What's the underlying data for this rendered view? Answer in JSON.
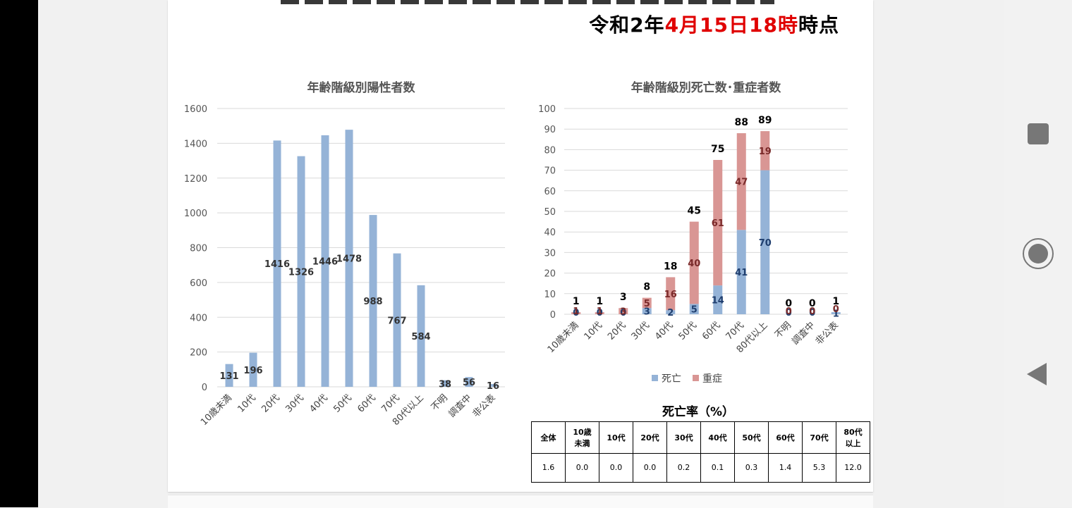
{
  "header": {
    "date_prefix": "令和2年",
    "date_red": "4月15日18時",
    "date_suffix": "時点"
  },
  "chart_data": [
    {
      "type": "bar",
      "title": "年齢階級別陽性者数",
      "categories": [
        "10歳未満",
        "10代",
        "20代",
        "30代",
        "40代",
        "50代",
        "60代",
        "70代",
        "80代以上",
        "不明",
        "調査中",
        "非公表"
      ],
      "values": [
        131,
        196,
        1416,
        1326,
        1446,
        1478,
        988,
        767,
        584,
        38,
        56,
        16
      ],
      "ylim": [
        0,
        1600
      ],
      "yticks": [
        0,
        200,
        400,
        600,
        800,
        1000,
        1200,
        1400,
        1600
      ],
      "color": "#95b3d7"
    },
    {
      "type": "bar",
      "stacked": true,
      "title": "年齢階級別死亡数･重症者数",
      "categories": [
        "10歳未満",
        "10代",
        "20代",
        "30代",
        "40代",
        "50代",
        "60代",
        "70代",
        "80代以上",
        "不明",
        "調査中",
        "非公表"
      ],
      "series": [
        {
          "name": "死亡",
          "color": "#95b3d7",
          "values": [
            0,
            0,
            0,
            3,
            2,
            5,
            14,
            41,
            70,
            0,
            0,
            1
          ]
        },
        {
          "name": "重症",
          "color": "#d99694",
          "values": [
            1,
            1,
            3,
            5,
            16,
            40,
            61,
            47,
            19,
            0,
            0,
            0
          ]
        }
      ],
      "totals": [
        1,
        1,
        3,
        8,
        18,
        45,
        75,
        88,
        89,
        0,
        0,
        1
      ],
      "ylim": [
        0,
        100
      ],
      "yticks": [
        0,
        10,
        20,
        30,
        40,
        50,
        60,
        70,
        80,
        90,
        100
      ],
      "legend": "bottom"
    }
  ],
  "mortality": {
    "title": "死亡率（%）",
    "headers": [
      "全体",
      "10歳\n未満",
      "10代",
      "20代",
      "30代",
      "40代",
      "50代",
      "60代",
      "70代",
      "80代\n以上"
    ],
    "values": [
      "1.6",
      "0.0",
      "0.0",
      "0.0",
      "0.2",
      "0.1",
      "0.3",
      "1.4",
      "5.3",
      "12.0"
    ]
  },
  "nav": {
    "icons": [
      "recents-icon",
      "home-icon",
      "back-icon"
    ]
  }
}
